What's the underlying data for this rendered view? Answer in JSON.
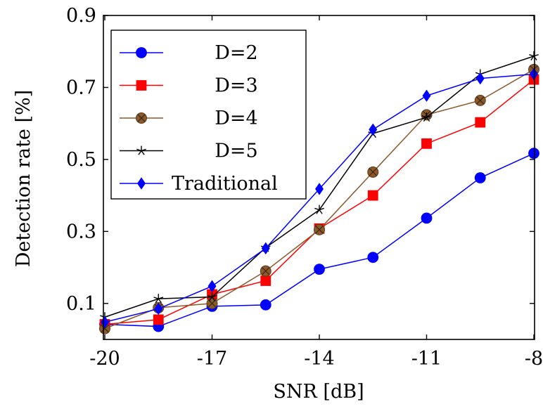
{
  "chart_data": {
    "type": "line",
    "title": "",
    "xlabel": "SNR [dB]",
    "ylabel": "Detection rate [%]",
    "xlim": [
      -20,
      -8
    ],
    "ylim": [
      0,
      0.9
    ],
    "xticks": [
      -20,
      -17,
      -14,
      -11,
      -8
    ],
    "xtick_labels": [
      "-20",
      "-17",
      "-14",
      "-11",
      "-8"
    ],
    "yticks": [
      0.1,
      0.3,
      0.5,
      0.7,
      0.9
    ],
    "ytick_labels": [
      "0.1",
      "0.3",
      "0.5",
      "0.7",
      "0.9"
    ],
    "grid": false,
    "legend_position": "top-left",
    "x": [
      -20,
      -18.5,
      -17,
      -15.5,
      -14,
      -12.5,
      -11,
      -9.5,
      -8
    ],
    "series": [
      {
        "name": "D=2",
        "color": "#0000ff",
        "marker": "circle",
        "values": [
          0.042,
          0.036,
          0.092,
          0.096,
          0.195,
          0.228,
          0.337,
          0.449,
          0.517
        ]
      },
      {
        "name": "D=3",
        "color": "#ff0000",
        "marker": "square",
        "values": [
          0.042,
          0.055,
          0.125,
          0.163,
          0.308,
          0.4,
          0.544,
          0.603,
          0.722
        ]
      },
      {
        "name": "D=4",
        "color": "#8b5a2b",
        "marker": "circle-x",
        "values": [
          0.03,
          0.088,
          0.1,
          0.19,
          0.305,
          0.465,
          0.624,
          0.664,
          0.75
        ]
      },
      {
        "name": "D=5",
        "color": "#000000",
        "marker": "star",
        "values": [
          0.062,
          0.113,
          0.118,
          0.255,
          0.36,
          0.572,
          0.617,
          0.737,
          0.787
        ]
      },
      {
        "name": "Traditional",
        "color": "#0000ff",
        "marker": "diamond",
        "values": [
          0.048,
          0.085,
          0.148,
          0.253,
          0.418,
          0.583,
          0.677,
          0.725,
          0.737
        ]
      }
    ]
  }
}
